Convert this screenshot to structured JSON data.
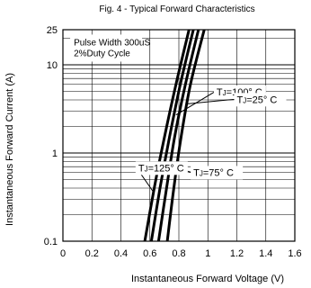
{
  "chart_data": {
    "type": "line",
    "title": "Fig. 4 - Typical Forward Characteristics",
    "xlabel": "Instantaneous Forward Voltage (V)",
    "ylabel": "Instantaneous Forward Current (A)",
    "xlim": [
      0,
      1.6
    ],
    "ylim": [
      0.1,
      25
    ],
    "yscale": "log",
    "grid": true,
    "x_ticks": [
      0,
      0.2,
      0.4,
      0.6,
      0.8,
      1,
      1.2,
      1.4,
      1.6
    ],
    "x_tick_labels": [
      "0",
      "0.2",
      "0.4",
      "0.6",
      "0.8",
      "1",
      "1.2",
      "1.4",
      "1.6"
    ],
    "y_ticks": [
      0.1,
      1,
      10,
      25
    ],
    "y_tick_labels": [
      "0.1",
      "1",
      "10",
      "25"
    ],
    "annotation": [
      "Pulse Width 300uS",
      "2%Duty Cycle"
    ],
    "series": [
      {
        "name": "TJ=125° C",
        "x": [
          0.565,
          0.63,
          0.7,
          0.78,
          0.87
        ],
        "y": [
          0.1,
          0.4,
          1.5,
          6,
          25
        ]
      },
      {
        "name": "TJ=100° C",
        "x": [
          0.61,
          0.67,
          0.735,
          0.81,
          0.9
        ],
        "y": [
          0.1,
          0.4,
          1.5,
          6,
          25
        ]
      },
      {
        "name": "TJ=75° C",
        "x": [
          0.66,
          0.715,
          0.77,
          0.845,
          0.935
        ],
        "y": [
          0.1,
          0.4,
          1.5,
          6,
          25
        ]
      },
      {
        "name": "TJ=25° C",
        "x": [
          0.72,
          0.765,
          0.815,
          0.88,
          0.975
        ],
        "y": [
          0.1,
          0.4,
          1.5,
          6,
          25
        ]
      }
    ],
    "labels": [
      {
        "text": "TJ=100° C",
        "series": 1,
        "at_x": 1.06,
        "at_y": 4.5,
        "point_x": 0.78,
        "point_y": 2.7
      },
      {
        "text": "TJ=25° C",
        "series": 3,
        "at_x": 1.2,
        "at_y": 3.7,
        "point_x": 0.85,
        "point_y": 3.6
      },
      {
        "text": "TJ=125° C",
        "series": 0,
        "at_x": 0.52,
        "at_y": 0.62,
        "point_x": 0.625,
        "point_y": 0.36
      },
      {
        "text": "TJ=75° C",
        "series": 2,
        "at_x": 0.9,
        "at_y": 0.55,
        "point_x": 0.72,
        "point_y": 0.72
      }
    ]
  }
}
